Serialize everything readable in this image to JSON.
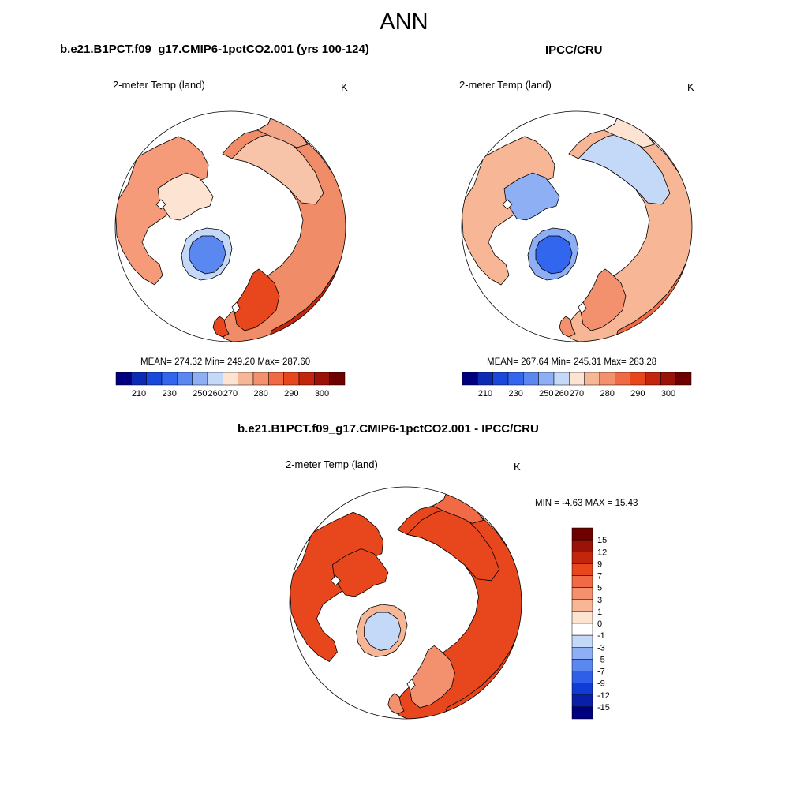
{
  "figure": {
    "title": "ANN",
    "colors": {
      "land_stroke": "#000000",
      "circle_stroke": "#000000",
      "ocean": "#ffffff"
    },
    "abs_colorbar": {
      "colors": [
        "#00007f",
        "#0b2bb5",
        "#1849dc",
        "#3366ee",
        "#5a88f0",
        "#8eaff4",
        "#c4d8f8",
        "#fde3d2",
        "#f7b797",
        "#f3906e",
        "#ef6a45",
        "#e8471e",
        "#c3260c",
        "#9a1306",
        "#6f0000"
      ],
      "tick_labels": [
        "210",
        "230",
        "250",
        "260",
        "270",
        "280",
        "290",
        "300"
      ]
    },
    "diff_colorbar": {
      "colors": [
        "#00007f",
        "#0a1fa8",
        "#0f3bd6",
        "#2f5fe8",
        "#5a88f0",
        "#8eaff4",
        "#c4d8f8",
        "#ffffff",
        "#fde3d2",
        "#f7b797",
        "#f3906e",
        "#ef6a45",
        "#e8471e",
        "#c3260c",
        "#9a1306",
        "#6f0000"
      ],
      "tick_labels": [
        "15",
        "12",
        "9",
        "7",
        "5",
        "3",
        "1",
        "0",
        "-1",
        "-3",
        "-5",
        "-7",
        "-9",
        "-12",
        "-15"
      ]
    }
  },
  "panels": {
    "model": {
      "title": "b.e21.B1PCT.f09_g17.CMIP6-1pctCO2.001 (yrs 100-124)",
      "variable": "2-meter Temp (land)",
      "units": "K",
      "stats": "MEAN= 274.32  Min= 249.20  Max= 287.60",
      "field": {
        "north_america": "#f59b7a",
        "eurasia": "#f08d68",
        "siberia": "#f7c4a9",
        "far_east": "#f3a687",
        "canadian_archipelago": "#fde3d2",
        "greenland": "#5a88f0",
        "greenland_edge": "#c4d8f8",
        "europe_south": "#e8471e",
        "asia_south": "#c3260c"
      }
    },
    "obs": {
      "title": "IPCC/CRU",
      "variable": "2-meter Temp (land)",
      "units": "K",
      "stats": "MEAN= 267.64  Min= 245.31  Max= 283.28",
      "field": {
        "north_america": "#f7b797",
        "eurasia": "#f7b797",
        "siberia": "#c4d8f8",
        "far_east": "#fde3d2",
        "canadian_archipelago": "#8eaff4",
        "greenland": "#3366ee",
        "greenland_edge": "#8eaff4",
        "europe_south": "#f3906e",
        "asia_south": "#ef6a45"
      }
    },
    "diff": {
      "title": "b.e21.B1PCT.f09_g17.CMIP6-1pctCO2.001 - IPCC/CRU",
      "variable": "2-meter Temp (land)",
      "units": "K",
      "stats": "MIN =  -4.63 MAX =  15.43",
      "field": {
        "north_america": "#e8471e",
        "eurasia": "#e8471e",
        "siberia": "#e8471e",
        "far_east": "#ef6a45",
        "canadian_archipelago": "#e8471e",
        "greenland": "#c4d8f8",
        "greenland_edge": "#f7b797",
        "europe_south": "#f3906e",
        "asia_south": "#e8471e"
      }
    }
  }
}
